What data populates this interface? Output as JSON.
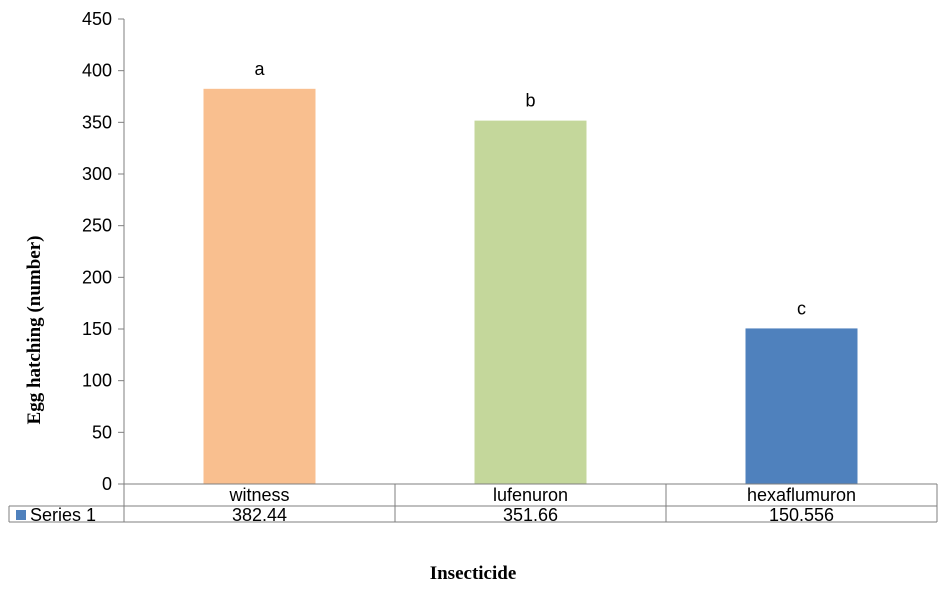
{
  "chart_data": {
    "type": "bar",
    "categories": [
      "witness",
      "lufenuron",
      "hexaflumuron"
    ],
    "series": [
      {
        "name": "Series 1",
        "values": [
          382.44,
          351.66,
          150.556
        ],
        "value_labels": [
          "382.44",
          "351.66",
          "150.556"
        ]
      }
    ],
    "bar_colors": [
      "#f9bf8f",
      "#c4d79b",
      "#4f81bd"
    ],
    "significance_letters": [
      "a",
      "b",
      "c"
    ],
    "title": "",
    "xlabel": "Insecticide",
    "ylabel": "Egg hatching (number)",
    "ylim": [
      0,
      450
    ],
    "y_ticks": [
      0,
      50,
      100,
      150,
      200,
      250,
      300,
      350,
      400,
      450
    ],
    "grid": false,
    "legend": "data-table",
    "data_table": true
  }
}
